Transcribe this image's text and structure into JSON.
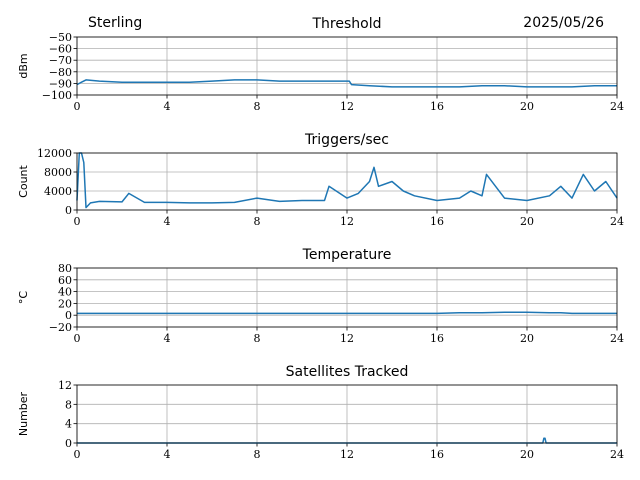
{
  "header": {
    "site": "Sterling",
    "date": "2025/05/26"
  },
  "chart_data": [
    {
      "type": "line",
      "title": "Threshold",
      "ylabel": "dBm",
      "xlabel": "",
      "xlim": [
        0,
        24
      ],
      "ylim": [
        -100,
        -50
      ],
      "x_ticks": [
        "0",
        "4",
        "8",
        "12",
        "16",
        "20",
        "24"
      ],
      "y_ticks": [
        "−50",
        "−60",
        "−70",
        "−80",
        "−90",
        "−100"
      ],
      "grid": true,
      "color": "#1f77b4",
      "series": [
        {
          "x": [
            0,
            0.2,
            0.4,
            1,
            2,
            3,
            4,
            5,
            6,
            7,
            8,
            9,
            10,
            11,
            12.1,
            12.2,
            13,
            14,
            15,
            16,
            17,
            18,
            19,
            20,
            21,
            22,
            23,
            24
          ],
          "values": [
            -91,
            -89,
            -87,
            -88,
            -89,
            -89,
            -89,
            -89,
            -88,
            -87,
            -87,
            -88,
            -88,
            -88,
            -88,
            -91,
            -92,
            -93,
            -93,
            -93,
            -93,
            -92,
            -92,
            -93,
            -93,
            -93,
            -92,
            -92
          ]
        }
      ]
    },
    {
      "type": "line",
      "title": "Triggers/sec",
      "ylabel": "Count",
      "xlabel": "",
      "xlim": [
        0,
        24
      ],
      "ylim": [
        0,
        12000
      ],
      "x_ticks": [
        "0",
        "4",
        "8",
        "12",
        "16",
        "20",
        "24"
      ],
      "y_ticks": [
        "0",
        "4000",
        "8000",
        "12000"
      ],
      "grid": true,
      "color": "#1f77b4",
      "series": [
        {
          "x": [
            0,
            0.1,
            0.2,
            0.3,
            0.4,
            0.6,
            1,
            2,
            2.3,
            3,
            4,
            5,
            6,
            7,
            8,
            9,
            10,
            11,
            11.2,
            12,
            12.5,
            13,
            13.2,
            13.4,
            14,
            14.5,
            15,
            16,
            17,
            17.5,
            18,
            18.2,
            19,
            20,
            21,
            21.5,
            22,
            22.5,
            23,
            23.5,
            24
          ],
          "values": [
            2000,
            12000,
            12000,
            10000,
            500,
            1500,
            1800,
            1700,
            3500,
            1600,
            1600,
            1500,
            1500,
            1600,
            2500,
            1800,
            2000,
            2000,
            5000,
            2500,
            3500,
            6000,
            9000,
            5000,
            6000,
            4000,
            3000,
            2000,
            2500,
            4000,
            3000,
            7500,
            2500,
            2000,
            3000,
            5000,
            2500,
            7500,
            4000,
            6000,
            2500
          ]
        }
      ]
    },
    {
      "type": "line",
      "title": "Temperature",
      "ylabel": "°C",
      "xlabel": "",
      "xlim": [
        0,
        24
      ],
      "ylim": [
        -20,
        80
      ],
      "x_ticks": [
        "0",
        "4",
        "8",
        "12",
        "16",
        "20",
        "24"
      ],
      "y_ticks": [
        "−20",
        "0",
        "20",
        "40",
        "60",
        "80"
      ],
      "grid": true,
      "color": "#1f77b4",
      "series": [
        {
          "x": [
            0,
            4,
            8,
            12,
            16,
            17,
            18,
            19,
            20,
            21,
            21.5,
            22,
            23,
            24
          ],
          "values": [
            3,
            3,
            3,
            3,
            3,
            4,
            4,
            5,
            5,
            4,
            4,
            3,
            3,
            3
          ]
        }
      ]
    },
    {
      "type": "line",
      "title": "Satellites Tracked",
      "ylabel": "Number",
      "xlabel": "",
      "xlim": [
        0,
        24
      ],
      "ylim": [
        0,
        12
      ],
      "x_ticks": [
        "0",
        "4",
        "8",
        "12",
        "16",
        "20",
        "24"
      ],
      "y_ticks": [
        "0",
        "4",
        "8",
        "12"
      ],
      "grid": true,
      "color": "#1f77b4",
      "series": [
        {
          "x": [
            0,
            20.7,
            20.75,
            20.8,
            20.85,
            24
          ],
          "values": [
            0,
            0,
            1,
            1,
            0,
            0
          ]
        }
      ]
    }
  ]
}
